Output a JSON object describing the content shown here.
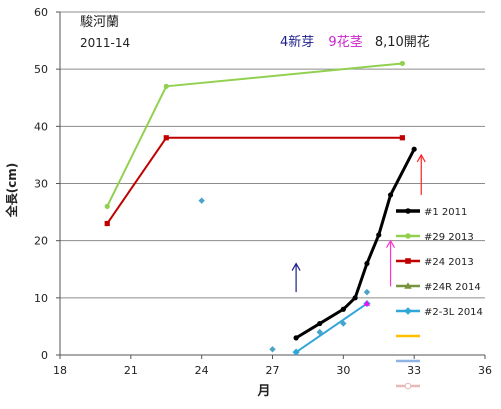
{
  "chart_data": {
    "type": "line",
    "title_lines": [
      "駿河蘭",
      "2011-14"
    ],
    "annotation": {
      "parts": [
        {
          "text": "4新芽",
          "color": "#1f1f8f"
        },
        {
          "text": "9花茎",
          "color": "#cc22cc"
        },
        {
          "text": "8,10開花",
          "color": "#222222"
        }
      ]
    },
    "xlabel": "月",
    "ylabel": "全長(cm)",
    "xlim": [
      18,
      36
    ],
    "ylim": [
      0,
      60
    ],
    "xticks": [
      18,
      21,
      24,
      27,
      30,
      33,
      36
    ],
    "yticks": [
      0,
      10,
      20,
      30,
      40,
      50,
      60
    ],
    "grid_y": true,
    "series": [
      {
        "name": "#1 2011",
        "color": "#000000",
        "marker": "circle",
        "width": 3,
        "x": [
          28,
          29,
          30,
          30.5,
          31,
          31.5,
          32,
          33
        ],
        "y": [
          3,
          5.5,
          8,
          10,
          16,
          21,
          28,
          36
        ]
      },
      {
        "name": "#29 2013",
        "color": "#92d050",
        "marker": "circle",
        "width": 2,
        "x": [
          20,
          22.5,
          32.5
        ],
        "y": [
          26,
          47,
          51
        ]
      },
      {
        "name": "#24 2013",
        "color": "#c00000",
        "marker": "square",
        "width": 2,
        "x": [
          20,
          22.5,
          32.5
        ],
        "y": [
          23,
          38,
          38
        ]
      },
      {
        "name": "#24R 2014",
        "color": "#77933c",
        "marker": "triangle",
        "width": 2,
        "x": [],
        "y": []
      },
      {
        "name": "#2-3L 2014",
        "color": "#31a6d8",
        "marker": "diamond",
        "width": 2,
        "x": [
          28,
          31
        ],
        "y": [
          0.5,
          9
        ]
      },
      {
        "name": "",
        "color": "#ffc000",
        "marker": "none",
        "width": 2,
        "x": [],
        "y": []
      },
      {
        "name": "",
        "color": "#8eb4e3",
        "marker": "none",
        "width": 2,
        "x": [],
        "y": []
      },
      {
        "name": "",
        "color": "#e6b9b8",
        "marker": "circle",
        "width": 2,
        "x": [],
        "y": []
      }
    ],
    "scatter_points": [
      {
        "x": 24,
        "y": 27,
        "color": "#4aa3c9",
        "shape": "diamond"
      },
      {
        "x": 27,
        "y": 1,
        "color": "#4aa3c9",
        "shape": "diamond"
      },
      {
        "x": 29,
        "y": 4,
        "color": "#4aa3c9",
        "shape": "diamond"
      },
      {
        "x": 30,
        "y": 5.5,
        "color": "#4aa3c9",
        "shape": "diamond"
      },
      {
        "x": 31,
        "y": 11,
        "color": "#4aa3c9",
        "shape": "diamond"
      },
      {
        "x": 31,
        "y": 9,
        "color": "#ff00ff",
        "shape": "triangle"
      }
    ],
    "event_arrows": [
      {
        "x": 28,
        "y_from": 11,
        "y_to": 16,
        "color": "#1f1f8f",
        "label": "4新芽"
      },
      {
        "x": 32,
        "y_from": 12,
        "y_to": 20,
        "color": "#ff33cc",
        "label": "9花茎"
      },
      {
        "x": 33.3,
        "y_from": 28,
        "y_to": 35,
        "color": "#ff2222",
        "label": "開花"
      }
    ]
  }
}
